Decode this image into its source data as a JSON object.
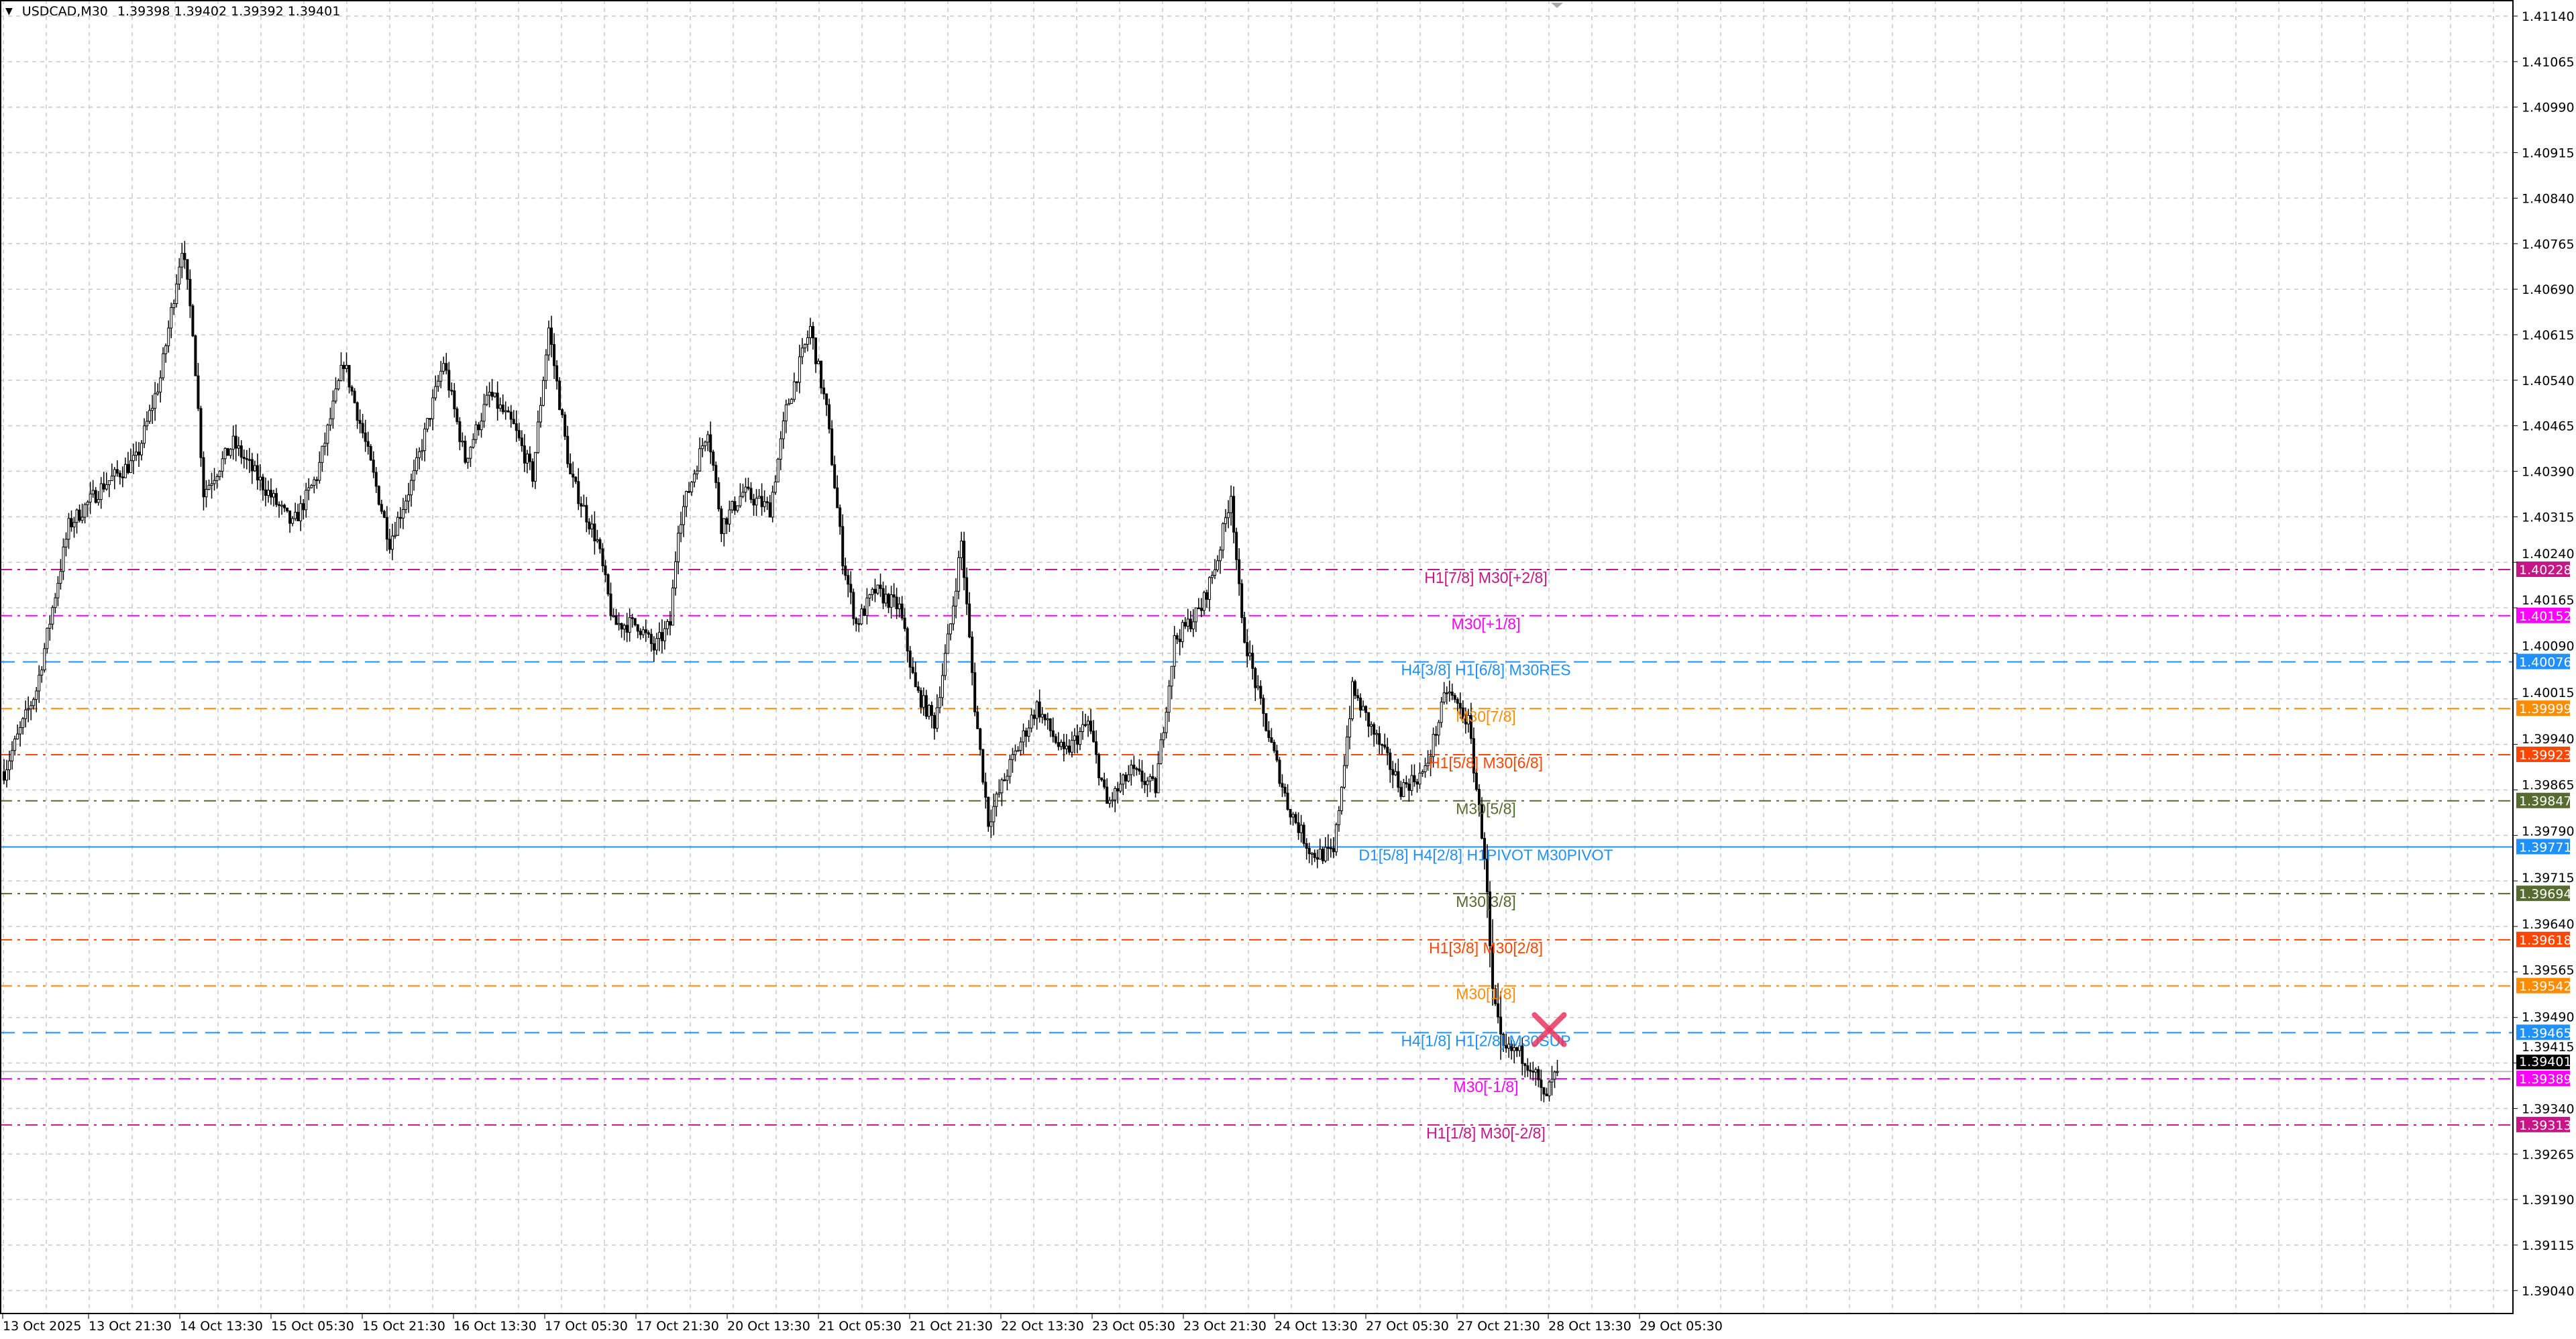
{
  "header": {
    "symbol_timeframe": "USDCAD,M30",
    "ohlc": "1.39398 1.39402 1.39392 1.39401",
    "menu_icon": "triangle-down-icon"
  },
  "chart_data": {
    "type": "candlestick",
    "symbol": "USDCAD",
    "timeframe": "M30",
    "ylim": [
      1.39,
      1.4118
    ],
    "grid": true,
    "y_ticks": [
      "1.41140",
      "1.41065",
      "1.40990",
      "1.40915",
      "1.40840",
      "1.40765",
      "1.40690",
      "1.40615",
      "1.40540",
      "1.40465",
      "1.40390",
      "1.40315",
      "1.40240",
      "1.40165",
      "1.40090",
      "1.40015",
      "1.39940",
      "1.39865",
      "1.39790",
      "1.39715",
      "1.39640",
      "1.39565",
      "1.39490",
      "1.39415",
      "1.39340",
      "1.39265",
      "1.39190",
      "1.39115",
      "1.39040"
    ],
    "x_ticks": [
      "13 Oct 2025",
      "13 Oct 21:30",
      "14 Oct 13:30",
      "15 Oct 05:30",
      "15 Oct 21:30",
      "16 Oct 13:30",
      "17 Oct 05:30",
      "17 Oct 21:30",
      "20 Oct 13:30",
      "21 Oct 05:30",
      "21 Oct 21:30",
      "22 Oct 13:30",
      "23 Oct 05:30",
      "23 Oct 21:30",
      "24 Oct 13:30",
      "27 Oct 05:30",
      "27 Oct 21:30",
      "28 Oct 13:30",
      "29 Oct 05:30"
    ],
    "price_path": [
      [
        0,
        1.39895
      ],
      [
        12,
        1.4003
      ],
      [
        24,
        1.403
      ],
      [
        37,
        1.40368
      ],
      [
        49,
        1.40409
      ],
      [
        58,
        1.40544
      ],
      [
        66,
        1.40761
      ],
      [
        70,
        1.40626
      ],
      [
        74,
        1.40355
      ],
      [
        85,
        1.40436
      ],
      [
        98,
        1.40355
      ],
      [
        107,
        1.40301
      ],
      [
        116,
        1.40382
      ],
      [
        126,
        1.40571
      ],
      [
        134,
        1.40436
      ],
      [
        143,
        1.40274
      ],
      [
        152,
        1.40382
      ],
      [
        163,
        1.40571
      ],
      [
        171,
        1.40409
      ],
      [
        180,
        1.40517
      ],
      [
        189,
        1.40463
      ],
      [
        196,
        1.40382
      ],
      [
        202,
        1.40626
      ],
      [
        210,
        1.40382
      ],
      [
        220,
        1.40274
      ],
      [
        226,
        1.40138
      ],
      [
        235,
        1.40138
      ],
      [
        241,
        1.40098
      ],
      [
        247,
        1.40138
      ],
      [
        250,
        1.40301
      ],
      [
        261,
        1.40463
      ],
      [
        266,
        1.40301
      ],
      [
        274,
        1.40355
      ],
      [
        284,
        1.40328
      ],
      [
        290,
        1.4049
      ],
      [
        299,
        1.40626
      ],
      [
        305,
        1.4049
      ],
      [
        311,
        1.40247
      ],
      [
        316,
        1.40138
      ],
      [
        323,
        1.40193
      ],
      [
        332,
        1.40165
      ],
      [
        338,
        1.4003
      ],
      [
        345,
        1.39976
      ],
      [
        351,
        1.40138
      ],
      [
        355,
        1.40274
      ],
      [
        360,
        1.40003
      ],
      [
        365,
        1.39813
      ],
      [
        372,
        1.39895
      ],
      [
        383,
        1.40003
      ],
      [
        393,
        1.39922
      ],
      [
        402,
        1.39976
      ],
      [
        409,
        1.3984
      ],
      [
        418,
        1.39895
      ],
      [
        427,
        1.39868
      ],
      [
        434,
        1.40111
      ],
      [
        444,
        1.40165
      ],
      [
        450,
        1.40247
      ],
      [
        455,
        1.40355
      ],
      [
        459,
        1.40138
      ],
      [
        466,
        1.40003
      ],
      [
        476,
        1.3984
      ],
      [
        485,
        1.39759
      ],
      [
        493,
        1.39759
      ],
      [
        500,
        1.4003
      ],
      [
        509,
        1.39949
      ],
      [
        518,
        1.39868
      ],
      [
        527,
        1.39895
      ],
      [
        535,
        1.4003
      ],
      [
        543,
        1.39976
      ],
      [
        549,
        1.39759
      ],
      [
        552,
        1.39516
      ],
      [
        555,
        1.39435
      ],
      [
        561,
        1.39435
      ],
      [
        567,
        1.39408
      ],
      [
        571,
        1.39354
      ],
      [
        576,
        1.39401
      ]
    ],
    "current_price": {
      "value": 1.39401,
      "label": "1.39401",
      "color": "#000000"
    },
    "levels": [
      {
        "price": 1.40228,
        "label": "1.40228",
        "name": "H1[7/8] M30[+2/8]",
        "color": "#c71585",
        "style": "dashdot"
      },
      {
        "price": 1.40152,
        "label": "1.40152",
        "name": "M30[+1/8]",
        "color": "#ff00ff",
        "style": "dashdot"
      },
      {
        "price": 1.40076,
        "label": "1.40076",
        "name": "H4[3/8] H1[6/8] M30RES",
        "color": "#1e90ff",
        "style": "dash"
      },
      {
        "price": 1.39999,
        "label": "1.39999",
        "name": "M30[7/8]",
        "color": "#ff8c00",
        "style": "dashdot"
      },
      {
        "price": 1.39923,
        "label": "1.39923",
        "name": "H1[5/8] M30[6/8]",
        "color": "#ff4500",
        "style": "dashdot"
      },
      {
        "price": 1.39847,
        "label": "1.39847",
        "name": "M30[5/8]",
        "color": "#556b2f",
        "style": "dashdot"
      },
      {
        "price": 1.39771,
        "label": "1.39771",
        "name": "D1[5/8] H4[2/8] H1PIVOT M30PIVOT",
        "color": "#1e90ff",
        "style": "solid"
      },
      {
        "price": 1.39694,
        "label": "1.39694",
        "name": "M30[3/8]",
        "color": "#556b2f",
        "style": "dashdot"
      },
      {
        "price": 1.39618,
        "label": "1.39618",
        "name": "H1[3/8] M30[2/8]",
        "color": "#ff4500",
        "style": "dashdot"
      },
      {
        "price": 1.39542,
        "label": "1.39542",
        "name": "M30[1/8]",
        "color": "#ff8c00",
        "style": "dashdot"
      },
      {
        "price": 1.39465,
        "label": "1.39465",
        "name": "H4[1/8] H1[2/8] M30SUP",
        "color": "#1e90ff",
        "style": "dash"
      },
      {
        "price": 1.39389,
        "label": "1.39389",
        "name": "M30[-1/8]",
        "color": "#ff00ff",
        "style": "dashdot"
      },
      {
        "price": 1.39313,
        "label": "1.39313",
        "name": "H1[1/8] M30[-2/8]",
        "color": "#c71585",
        "style": "dashdot"
      }
    ],
    "marker": {
      "icon": "cross-mark-icon",
      "price": 1.3947,
      "bar": 573,
      "color": "#e8375e"
    }
  }
}
